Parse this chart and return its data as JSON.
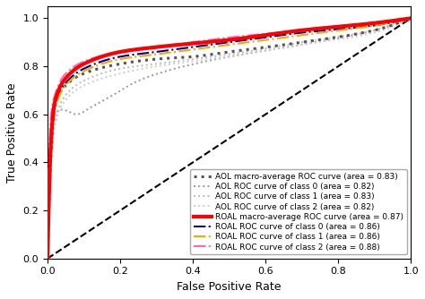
{
  "xlabel": "False Positive Rate",
  "ylabel": "True Positive Rate",
  "xlim": [
    0.0,
    1.0
  ],
  "ylim": [
    0.0,
    1.05
  ],
  "xticks": [
    0.0,
    0.2,
    0.4,
    0.6,
    0.8,
    1.0
  ],
  "yticks": [
    0.0,
    0.2,
    0.4,
    0.6,
    0.8,
    1.0
  ],
  "legend_entries": [
    {
      "label": "AOL macro-average ROC curve (area = 0.83)",
      "color": "#555555",
      "style": "dotted",
      "lw": 2.2
    },
    {
      "label": "AOL ROC curve of class 0 (area = 0.82)",
      "color": "#999999",
      "style": "dotted",
      "lw": 1.4
    },
    {
      "label": "AOL ROC curve of class 1 (area = 0.83)",
      "color": "#bbbbbb",
      "style": "dotted",
      "lw": 1.4
    },
    {
      "label": "AOL ROC curve of class 2 (area = 0.82)",
      "color": "#cccccc",
      "style": "dotted",
      "lw": 1.4
    },
    {
      "label": "ROAL macro-average ROC curve (area = 0.87)",
      "color": "#ff0000",
      "style": "solid",
      "lw": 3.0
    },
    {
      "label": "ROAL ROC curve of class 0 (area = 0.86)",
      "color": "#00008b",
      "style": "dashdot",
      "lw": 1.5
    },
    {
      "label": "ROAL ROC curve of class 1 (area = 0.86)",
      "color": "#ffa500",
      "style": "dashdot",
      "lw": 1.5
    },
    {
      "label": "ROAL ROC curve of class 2 (area = 0.88)",
      "color": "#ff69b4",
      "style": "dashdot",
      "lw": 1.5
    }
  ],
  "figsize": [
    4.74,
    3.34
  ],
  "dpi": 100,
  "legend_fontsize": 6.5,
  "axis_label_fontsize": 9,
  "tick_fontsize": 8
}
